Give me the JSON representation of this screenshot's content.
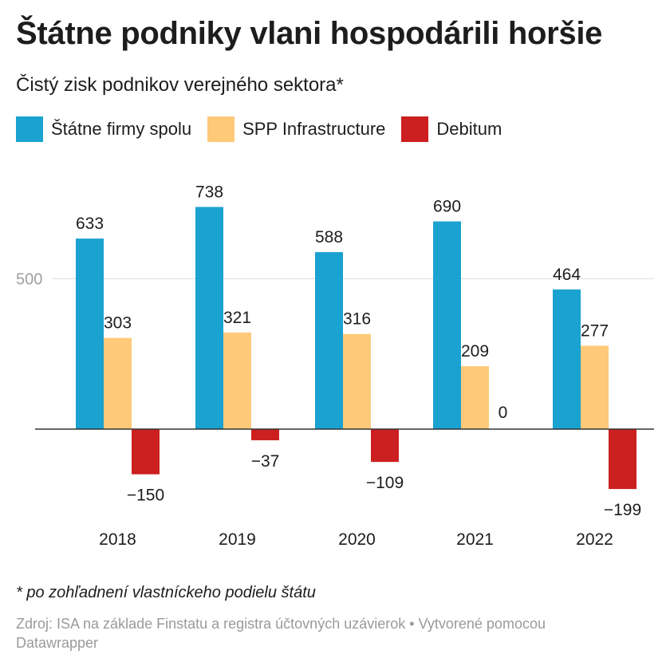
{
  "title": "Štátne podniky vlani hospodárili horšie",
  "subtitle": "Čistý zisk podnikov verejného sektora*",
  "footnote": "* po zohľadnení vlastníckeho podielu štátu",
  "source": "Zdroj: ISA na základe Finstatu a registra účtovných uzávierok • Vytvorené pomocou Datawrapper",
  "chart_data": {
    "type": "bar",
    "categories": [
      "2018",
      "2019",
      "2020",
      "2021",
      "2022"
    ],
    "series": [
      {
        "name": "Štátne firmy spolu",
        "color": "#1aa2d0",
        "values": [
          633,
          738,
          588,
          690,
          464
        ],
        "labels": [
          "633",
          "738",
          "588",
          "690",
          "464"
        ]
      },
      {
        "name": "SPP Infrastructure",
        "color": "#fec979",
        "values": [
          303,
          321,
          316,
          209,
          277
        ],
        "labels": [
          "303",
          "321",
          "316",
          "209",
          "277"
        ]
      },
      {
        "name": "Debitum",
        "color": "#cc1f1f",
        "values": [
          -150,
          -37,
          -109,
          0,
          -199
        ],
        "labels": [
          "−150",
          "−37",
          "−109",
          "0",
          "−199"
        ]
      }
    ],
    "yticks": [
      500
    ],
    "ylim": [
      -250,
      800
    ],
    "grid": true,
    "legend": "top-left"
  }
}
